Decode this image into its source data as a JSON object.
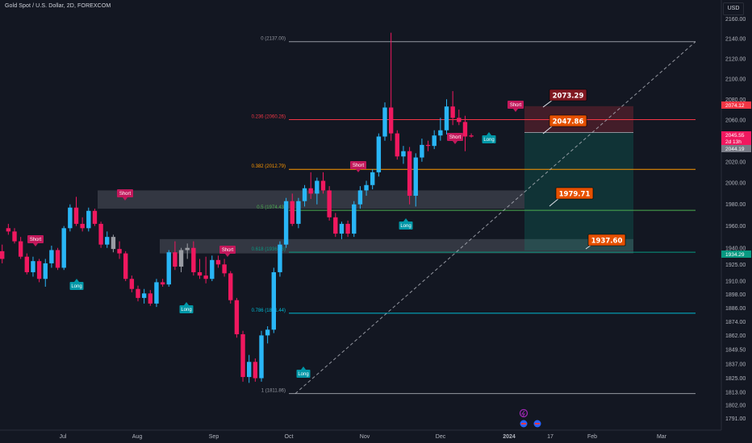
{
  "header": {
    "title": "Gold Spot / U.S. Dollar, 2D, FOREXCOM",
    "currency": "USD"
  },
  "colors": {
    "bg": "#131722",
    "up": "#29b6f6",
    "down": "#f0185f",
    "neutral": "#9a9ca3",
    "grid": "#1f2330",
    "axis_text": "#b2b5be"
  },
  "chart_data": {
    "type": "candlestick",
    "title": "Gold Spot / U.S. Dollar, 2D, FOREXCOM",
    "ylim": [
      1791,
      2160
    ],
    "y_scale": "log",
    "y_ticks": [
      2160,
      2140,
      2120,
      2100,
      2080,
      2060,
      2040,
      2020,
      2000,
      1980,
      1960,
      1940,
      1925,
      1910,
      1898,
      1886,
      1874,
      1862,
      1849.5,
      1837,
      1825,
      1813,
      1802,
      1791
    ],
    "y_tick_labels": [
      "2160.00",
      "2140.00",
      "2120.00",
      "2100.00",
      "2080.00",
      "2060.00",
      "2040.00",
      "2020.00",
      "2000.00",
      "1980.00",
      "1960.00",
      "1940.00",
      "1925.00",
      "1910.00",
      "1898.00",
      "1886.00",
      "1874.00",
      "1862.00",
      "1849.50",
      "1837.00",
      "1825.00",
      "1813.00",
      "1802.00",
      "1791.00"
    ],
    "x_tick_labels": [
      "Jul",
      "Aug",
      "Sep",
      "Oct",
      "Nov",
      "Dec",
      "2024",
      "17",
      "Feb",
      "Mar"
    ],
    "grid": false,
    "fibonacci": [
      {
        "label": "0 (2137.00)",
        "price": 2137.0,
        "color": "#9598a1"
      },
      {
        "label": "0.236 (2060.26)",
        "price": 2060.26,
        "color": "#f23645"
      },
      {
        "label": "0.382 (2012.79)",
        "price": 2012.79,
        "color": "#ff9800"
      },
      {
        "label": "0.5 (1974.43)",
        "price": 1974.43,
        "color": "#4caf50"
      },
      {
        "label": "0.618 (1936.06)",
        "price": 1936.06,
        "color": "#089981"
      },
      {
        "label": "0.786 (1881.44)",
        "price": 1881.44,
        "color": "#00bcd4"
      },
      {
        "label": "1 (1811.86)",
        "price": 1811.86,
        "color": "#9598a1"
      }
    ],
    "annotations": [
      {
        "text": "2073.29",
        "price": 2073.29,
        "bg": "#801922"
      },
      {
        "text": "2047.86",
        "price": 2047.86,
        "bg": "#e65100"
      },
      {
        "text": "1979.71",
        "price": 1979.71,
        "bg": "#e65100"
      },
      {
        "text": "1937.60",
        "price": 1937.6,
        "bg": "#e65100"
      }
    ],
    "price_tags": [
      {
        "text": "2074.12",
        "bg": "#f23645"
      },
      {
        "text": "2045.55",
        "bg": "#f0185f"
      },
      {
        "text": "2d 13h",
        "bg": "#f0185f"
      },
      {
        "text": "2044.19",
        "bg": "#787b86"
      },
      {
        "text": "1934.29",
        "bg": "#089981"
      }
    ],
    "signals": [
      {
        "text": "Short",
        "kind": "short"
      },
      {
        "text": "Short",
        "kind": "short"
      },
      {
        "text": "Long",
        "kind": "long"
      },
      {
        "text": "Long",
        "kind": "long"
      },
      {
        "text": "Short",
        "kind": "short"
      },
      {
        "text": "Long",
        "kind": "long"
      },
      {
        "text": "Short",
        "kind": "short"
      },
      {
        "text": "Long",
        "kind": "long"
      },
      {
        "text": "Short",
        "kind": "short"
      },
      {
        "text": "Long",
        "kind": "long"
      },
      {
        "text": "Short",
        "kind": "short"
      }
    ],
    "candles": [
      {
        "o": 1937,
        "h": 1943,
        "l": 1926,
        "c": 1930
      },
      {
        "o": 1958,
        "h": 1962,
        "l": 1952,
        "c": 1955
      },
      {
        "o": 1955,
        "h": 1958,
        "l": 1944,
        "c": 1946
      },
      {
        "o": 1946,
        "h": 1950,
        "l": 1930,
        "c": 1932
      },
      {
        "o": 1932,
        "h": 1935,
        "l": 1916,
        "c": 1918
      },
      {
        "o": 1918,
        "h": 1932,
        "l": 1914,
        "c": 1928
      },
      {
        "o": 1928,
        "h": 1930,
        "l": 1909,
        "c": 1912
      },
      {
        "o": 1912,
        "h": 1930,
        "l": 1905,
        "c": 1926
      },
      {
        "o": 1926,
        "h": 1942,
        "l": 1922,
        "c": 1938
      },
      {
        "o": 1938,
        "h": 1940,
        "l": 1920,
        "c": 1922
      },
      {
        "o": 1922,
        "h": 1960,
        "l": 1920,
        "c": 1958
      },
      {
        "o": 1958,
        "h": 1980,
        "l": 1955,
        "c": 1977
      },
      {
        "o": 1977,
        "h": 1987,
        "l": 1960,
        "c": 1962
      },
      {
        "o": 1962,
        "h": 1968,
        "l": 1955,
        "c": 1958
      },
      {
        "o": 1958,
        "h": 1977,
        "l": 1955,
        "c": 1974
      },
      {
        "o": 1974,
        "h": 1976,
        "l": 1960,
        "c": 1962
      },
      {
        "o": 1962,
        "h": 1964,
        "l": 1940,
        "c": 1943
      },
      {
        "o": 1943,
        "h": 1955,
        "l": 1940,
        "c": 1950
      },
      {
        "o": 1950,
        "h": 1952,
        "l": 1936,
        "c": 1939
      },
      {
        "o": 1939,
        "h": 1946,
        "l": 1930,
        "c": 1935
      },
      {
        "o": 1935,
        "h": 1937,
        "l": 1910,
        "c": 1912
      },
      {
        "o": 1912,
        "h": 1915,
        "l": 1900,
        "c": 1903
      },
      {
        "o": 1903,
        "h": 1906,
        "l": 1892,
        "c": 1895
      },
      {
        "o": 1895,
        "h": 1903,
        "l": 1890,
        "c": 1899
      },
      {
        "o": 1899,
        "h": 1902,
        "l": 1888,
        "c": 1890
      },
      {
        "o": 1890,
        "h": 1912,
        "l": 1887,
        "c": 1909
      },
      {
        "o": 1909,
        "h": 1912,
        "l": 1905,
        "c": 1907
      },
      {
        "o": 1907,
        "h": 1938,
        "l": 1905,
        "c": 1936
      },
      {
        "o": 1936,
        "h": 1946,
        "l": 1920,
        "c": 1923
      },
      {
        "o": 1923,
        "h": 1940,
        "l": 1918,
        "c": 1938
      },
      {
        "o": 1938,
        "h": 1944,
        "l": 1930,
        "c": 1940
      },
      {
        "o": 1940,
        "h": 1946,
        "l": 1915,
        "c": 1918
      },
      {
        "o": 1918,
        "h": 1930,
        "l": 1912,
        "c": 1915
      },
      {
        "o": 1915,
        "h": 1932,
        "l": 1908,
        "c": 1912
      },
      {
        "o": 1912,
        "h": 1933,
        "l": 1910,
        "c": 1929
      },
      {
        "o": 1929,
        "h": 1933,
        "l": 1922,
        "c": 1925
      },
      {
        "o": 1925,
        "h": 1930,
        "l": 1914,
        "c": 1917
      },
      {
        "o": 1917,
        "h": 1919,
        "l": 1890,
        "c": 1893
      },
      {
        "o": 1893,
        "h": 1895,
        "l": 1860,
        "c": 1863
      },
      {
        "o": 1863,
        "h": 1866,
        "l": 1822,
        "c": 1826
      },
      {
        "o": 1826,
        "h": 1845,
        "l": 1821,
        "c": 1839
      },
      {
        "o": 1839,
        "h": 1842,
        "l": 1822,
        "c": 1825
      },
      {
        "o": 1825,
        "h": 1866,
        "l": 1822,
        "c": 1862
      },
      {
        "o": 1862,
        "h": 1870,
        "l": 1855,
        "c": 1867
      },
      {
        "o": 1867,
        "h": 1922,
        "l": 1864,
        "c": 1918
      },
      {
        "o": 1918,
        "h": 1946,
        "l": 1914,
        "c": 1943
      },
      {
        "o": 1943,
        "h": 1986,
        "l": 1940,
        "c": 1983
      },
      {
        "o": 1983,
        "h": 1990,
        "l": 1960,
        "c": 1962
      },
      {
        "o": 1962,
        "h": 1986,
        "l": 1958,
        "c": 1983
      },
      {
        "o": 1983,
        "h": 1998,
        "l": 1978,
        "c": 1995
      },
      {
        "o": 1995,
        "h": 2010,
        "l": 1985,
        "c": 1990
      },
      {
        "o": 1990,
        "h": 2005,
        "l": 1980,
        "c": 2002
      },
      {
        "o": 2002,
        "h": 2010,
        "l": 1990,
        "c": 1993
      },
      {
        "o": 1993,
        "h": 1997,
        "l": 1965,
        "c": 1968
      },
      {
        "o": 1968,
        "h": 1972,
        "l": 1950,
        "c": 1953
      },
      {
        "o": 1953,
        "h": 1964,
        "l": 1948,
        "c": 1962
      },
      {
        "o": 1962,
        "h": 1965,
        "l": 1950,
        "c": 1953
      },
      {
        "o": 1953,
        "h": 1983,
        "l": 1950,
        "c": 1980
      },
      {
        "o": 1980,
        "h": 1997,
        "l": 1976,
        "c": 1993
      },
      {
        "o": 1993,
        "h": 2002,
        "l": 1988,
        "c": 1998
      },
      {
        "o": 1998,
        "h": 2013,
        "l": 1994,
        "c": 2010
      },
      {
        "o": 2010,
        "h": 2047,
        "l": 2006,
        "c": 2044
      },
      {
        "o": 2044,
        "h": 2077,
        "l": 2040,
        "c": 2072
      },
      {
        "o": 2072,
        "h": 2146,
        "l": 2040,
        "c": 2047
      },
      {
        "o": 2047,
        "h": 2050,
        "l": 2022,
        "c": 2025
      },
      {
        "o": 2025,
        "h": 2035,
        "l": 2018,
        "c": 2030
      },
      {
        "o": 2030,
        "h": 2034,
        "l": 1980,
        "c": 1988
      },
      {
        "o": 1988,
        "h": 2028,
        "l": 1978,
        "c": 2024
      },
      {
        "o": 2024,
        "h": 2042,
        "l": 2020,
        "c": 2036
      },
      {
        "o": 2036,
        "h": 2040,
        "l": 2030,
        "c": 2035
      },
      {
        "o": 2035,
        "h": 2050,
        "l": 2032,
        "c": 2045
      },
      {
        "o": 2045,
        "h": 2062,
        "l": 2040,
        "c": 2050
      },
      {
        "o": 2050,
        "h": 2080,
        "l": 2046,
        "c": 2073
      },
      {
        "o": 2073,
        "h": 2088,
        "l": 2055,
        "c": 2062
      },
      {
        "o": 2062,
        "h": 2070,
        "l": 2055,
        "c": 2058
      },
      {
        "o": 2058,
        "h": 2064,
        "l": 2030,
        "c": 2044
      },
      {
        "o": 2045,
        "h": 2047,
        "l": 2043,
        "c": 2044
      }
    ]
  }
}
